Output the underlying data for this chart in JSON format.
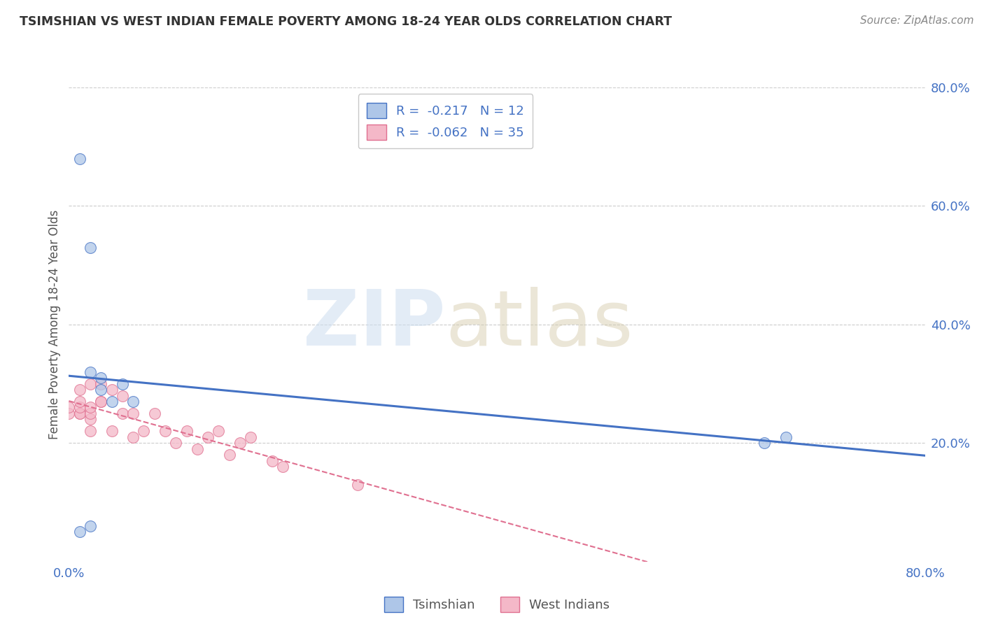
{
  "title": "TSIMSHIAN VS WEST INDIAN FEMALE POVERTY AMONG 18-24 YEAR OLDS CORRELATION CHART",
  "source": "Source: ZipAtlas.com",
  "ylabel": "Female Poverty Among 18-24 Year Olds",
  "xlim": [
    0.0,
    0.8
  ],
  "ylim": [
    0.0,
    0.8
  ],
  "ytick_values": [
    0.2,
    0.4,
    0.6,
    0.8
  ],
  "grid_color": "#cccccc",
  "background_color": "#ffffff",
  "tsimshian_color": "#aec6e8",
  "tsimshian_edge": "#4472c4",
  "tsimshian_line": "#4472c4",
  "wi_color": "#f4b8c8",
  "wi_edge": "#e07090",
  "wi_line": "#e07090",
  "legend_r_tsim": "R =  -0.217",
  "legend_n_tsim": "N = 12",
  "legend_r_wi": "R =  -0.062",
  "legend_n_wi": "N = 35",
  "tsimshian_x": [
    0.01,
    0.02,
    0.02,
    0.03,
    0.03,
    0.04,
    0.05,
    0.06,
    0.65,
    0.67,
    0.02,
    0.01
  ],
  "tsimshian_y": [
    0.68,
    0.53,
    0.32,
    0.31,
    0.29,
    0.27,
    0.3,
    0.27,
    0.2,
    0.21,
    0.06,
    0.05
  ],
  "west_indians_x": [
    0.0,
    0.0,
    0.01,
    0.01,
    0.01,
    0.01,
    0.01,
    0.02,
    0.02,
    0.02,
    0.02,
    0.02,
    0.03,
    0.03,
    0.03,
    0.04,
    0.04,
    0.05,
    0.05,
    0.06,
    0.06,
    0.07,
    0.08,
    0.09,
    0.1,
    0.11,
    0.12,
    0.13,
    0.14,
    0.15,
    0.16,
    0.17,
    0.19,
    0.2,
    0.27
  ],
  "west_indians_y": [
    0.25,
    0.26,
    0.25,
    0.25,
    0.26,
    0.27,
    0.29,
    0.22,
    0.24,
    0.25,
    0.26,
    0.3,
    0.27,
    0.27,
    0.3,
    0.22,
    0.29,
    0.25,
    0.28,
    0.21,
    0.25,
    0.22,
    0.25,
    0.22,
    0.2,
    0.22,
    0.19,
    0.21,
    0.22,
    0.18,
    0.2,
    0.21,
    0.17,
    0.16,
    0.13
  ]
}
